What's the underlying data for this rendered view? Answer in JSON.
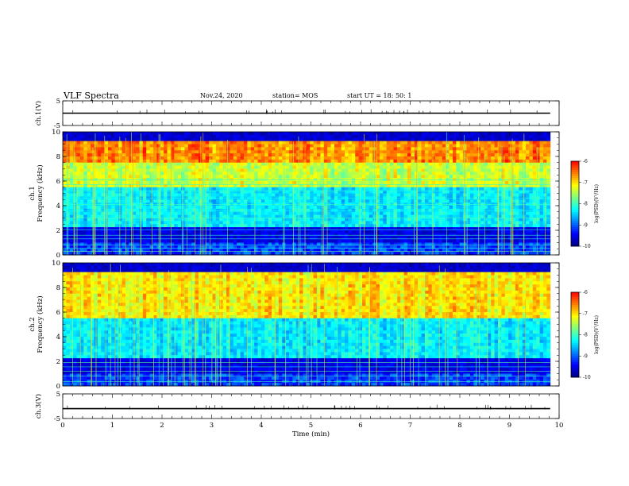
{
  "header": {
    "title": "VLF Spectra",
    "date": "Nov.24, 2020",
    "station": "station= MOS",
    "start": "start  UT =   18: 50: 1"
  },
  "chart_data": [
    {
      "type": "line",
      "panel": "channel-1-amplitude",
      "ylabel": "ch.1(V)",
      "ylim": [
        -5,
        5
      ],
      "ytick_labels": [
        "5",
        "-5"
      ],
      "xlim": [
        0,
        10
      ],
      "series": [
        {
          "x": [
            0,
            9.82
          ],
          "y": [
            0,
            0
          ]
        }
      ]
    },
    {
      "type": "heatmap",
      "panel": "channel-1-spectrogram",
      "ylabel_top": "ch.1",
      "ylabel": "Frequency (kHz)",
      "ylim": [
        0,
        10
      ],
      "ytick_labels": [
        "0",
        "2",
        "4",
        "6",
        "8",
        "10"
      ],
      "xlim": [
        0,
        10
      ],
      "data_xmax": 9.82,
      "colorbar": {
        "label": "log(PSD)(V²/Hz)",
        "range": [
          -10,
          -6
        ],
        "tick_labels": [
          "-6",
          "-7",
          "-8",
          "-9",
          "-10"
        ]
      }
    },
    {
      "type": "heatmap",
      "panel": "channel-2-spectrogram",
      "ylabel_top": "ch.2",
      "ylabel": "Frequency (kHz)",
      "ylim": [
        0,
        10
      ],
      "ytick_labels": [
        "0",
        "2",
        "4",
        "6",
        "8",
        "10"
      ],
      "xlim": [
        0,
        10
      ],
      "data_xmax": 9.82,
      "colorbar": {
        "label": "log(PSD)(V²/Hz)",
        "range": [
          -10,
          -6
        ],
        "tick_labels": [
          "-6",
          "-7",
          "-8",
          "-9",
          "-10"
        ]
      }
    },
    {
      "type": "line",
      "panel": "channel-3-amplitude",
      "ylabel": "ch.3(V)",
      "ylim": [
        -5,
        5
      ],
      "ytick_labels": [
        "5",
        "-5"
      ],
      "xlim": [
        0,
        10
      ],
      "xlabel": "Time (min)",
      "xtick_labels": [
        "0",
        "1",
        "2",
        "3",
        "4",
        "5",
        "6",
        "7",
        "8",
        "9",
        "10"
      ],
      "series": [
        {
          "x": [
            0,
            9.82
          ],
          "y": [
            -1,
            -1
          ]
        }
      ]
    }
  ],
  "colors": {
    "colormap": [
      "#00007f",
      "#0000ff",
      "#007fff",
      "#00ffff",
      "#7fff7f",
      "#ffff00",
      "#ff7f00",
      "#ff0000",
      "#ffffff"
    ],
    "background_dark": "#000010"
  }
}
